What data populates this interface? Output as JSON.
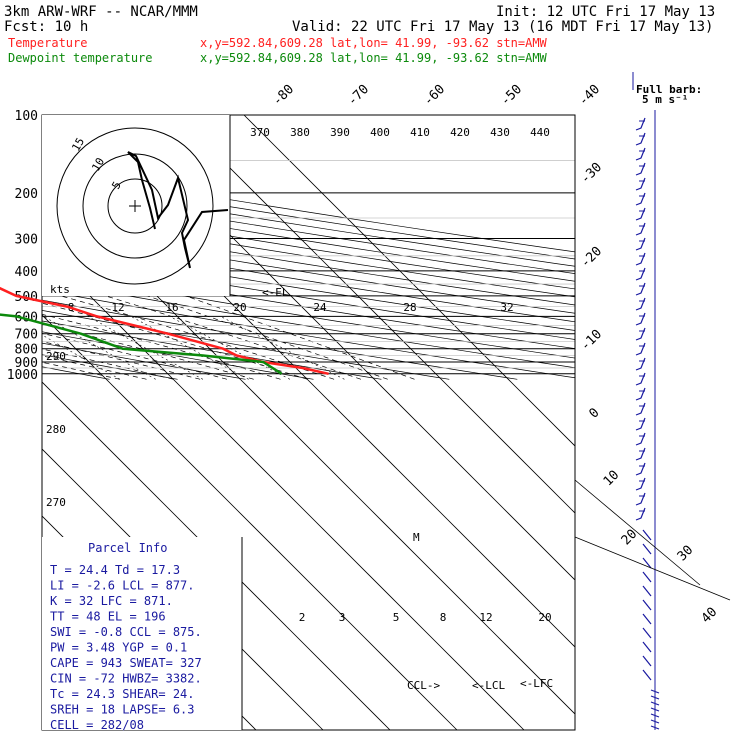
{
  "header": {
    "model": "3km ARW-WRF -- NCAR/MMM",
    "init": "Init: 12 UTC Fri 17 May 13",
    "fcst": "Fcst:   10 h",
    "valid": "Valid: 22 UTC Fri 17 May 13 (16 MDT Fri 17 May 13)",
    "temp_label": "Temperature",
    "dew_label": "Dewpoint temperature",
    "temp_loc": "x,y=592.84,609.28   lat,lon= 41.99, -93.62  stn=AMW",
    "dew_loc": "x,y=592.84,609.28   lat,lon= 41.99, -93.62  stn=AMW",
    "full_barb_line1": "Full barb:",
    "full_barb_line2": "5 m s⁻¹"
  },
  "colors": {
    "temperature": "#ff2020",
    "dewpoint": "#0c8a0c",
    "info": "#1a1aa0",
    "grid": "#000000"
  },
  "chart_data": {
    "type": "line",
    "pressure_levels": [
      "100",
      "200",
      "300",
      "400",
      "500",
      "600",
      "700",
      "800",
      "900",
      "1000"
    ],
    "temp_axis_labels": [
      "-80",
      "-70",
      "-60",
      "-50",
      "-40",
      "-30",
      "-20",
      "-10",
      "0",
      "10",
      "20",
      "30",
      "40"
    ],
    "theta_labels": [
      "370",
      "380",
      "390",
      "400",
      "410",
      "420",
      "430",
      "440"
    ],
    "theta_e_labels": [
      "290",
      "280",
      "270"
    ],
    "hodograph_speed_labels": [
      "8",
      "12",
      "16",
      "20",
      "24",
      "28",
      "32"
    ],
    "hodo_unit": "kts",
    "hodo_ring_labels": [
      "5",
      "10",
      "15"
    ],
    "mixing_ratio_labels": [
      "2",
      "3",
      "5",
      "8",
      "12",
      "20"
    ],
    "el_marker": "<-EL",
    "ccl_marker": "CCL->",
    "lcl_marker": "<-LCL",
    "lfc_marker": "<-LFC",
    "m_marker": "M",
    "series": [
      {
        "name": "Temperature",
        "points": [
          [
            100,
            -62
          ],
          [
            150,
            -58
          ],
          [
            170,
            -59
          ],
          [
            190,
            -62
          ],
          [
            200,
            -61
          ],
          [
            250,
            -50
          ],
          [
            300,
            -41
          ],
          [
            350,
            -30
          ],
          [
            400,
            -21
          ],
          [
            450,
            -13
          ],
          [
            500,
            -11
          ],
          [
            550,
            -5
          ],
          [
            600,
            -2
          ],
          [
            700,
            6
          ],
          [
            800,
            12
          ],
          [
            850,
            13
          ],
          [
            900,
            16
          ],
          [
            950,
            21
          ],
          [
            1000,
            24
          ]
        ]
      },
      {
        "name": "Dewpoint temperature",
        "points": [
          [
            100,
            -83
          ],
          [
            140,
            -80
          ],
          [
            170,
            -82
          ],
          [
            200,
            -88
          ],
          [
            240,
            -82
          ],
          [
            300,
            -63
          ],
          [
            330,
            -58
          ],
          [
            370,
            -63
          ],
          [
            400,
            -62
          ],
          [
            450,
            -48
          ],
          [
            500,
            -37
          ],
          [
            550,
            -26
          ],
          [
            600,
            -14
          ],
          [
            700,
            -7
          ],
          [
            800,
            -3
          ],
          [
            850,
            8
          ],
          [
            900,
            16
          ],
          [
            1000,
            17
          ]
        ]
      }
    ]
  },
  "parcel": {
    "title": "Parcel  Info",
    "rows": [
      "T  =   24.4  Td =  17.3",
      "LI =   -2.6  LCL =  877.",
      "K  =     32  LFC =  871.",
      "TT =     48  EL  =   196",
      "SWI =  -0.8  CCL =  875.",
      "PW =   3.48  YGP =   0.1",
      "CAPE =  943  SWEAT=  327",
      "CIN =   -72  HWBZ= 3382.",
      "Tc =   24.3  SHEAR=  24.",
      "SREH =   18  LAPSE=  6.3",
      "CELL = 282/08"
    ]
  }
}
